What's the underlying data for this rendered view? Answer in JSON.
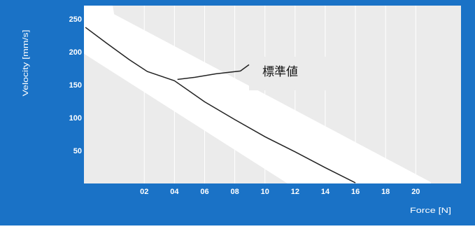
{
  "chart_data": {
    "type": "line",
    "title": "",
    "xlabel": "Force [N]",
    "ylabel": "Velocity [mm/s]",
    "xlim": [
      -0.2,
      2.3
    ],
    "ylim": [
      0,
      270
    ],
    "x_ticks": [
      {
        "value": 0.2,
        "label": "02"
      },
      {
        "value": 0.4,
        "label": "04"
      },
      {
        "value": 0.6,
        "label": "06"
      },
      {
        "value": 0.8,
        "label": "08"
      },
      {
        "value": 1.0,
        "label": "10"
      },
      {
        "value": 1.2,
        "label": "12"
      },
      {
        "value": 1.4,
        "label": "14"
      },
      {
        "value": 1.6,
        "label": "16"
      },
      {
        "value": 1.8,
        "label": "18"
      },
      {
        "value": 2.0,
        "label": "20"
      }
    ],
    "y_ticks": [
      {
        "value": 50,
        "label": "50"
      },
      {
        "value": 100,
        "label": "100"
      },
      {
        "value": 150,
        "label": "150"
      },
      {
        "value": 200,
        "label": "200"
      },
      {
        "value": 250,
        "label": "250"
      }
    ],
    "grid": true,
    "series": [
      {
        "name": "",
        "points": [
          [
            -0.19,
            237
          ],
          [
            -0.05,
            213
          ],
          [
            0.1,
            188
          ],
          [
            0.22,
            170
          ],
          [
            0.4,
            156
          ],
          [
            0.6,
            124
          ],
          [
            0.8,
            97
          ],
          [
            1.0,
            71
          ],
          [
            1.2,
            48
          ],
          [
            1.4,
            24
          ],
          [
            1.6,
            1
          ]
        ]
      }
    ],
    "band": {
      "upper": [
        [
          0.0,
          257
        ],
        [
          2.1,
          2
        ]
      ],
      "lower": [
        [
          -0.19,
          197
        ],
        [
          1.15,
          0
        ]
      ]
    },
    "annotation": {
      "text": "標準値",
      "points_to": [
        0.42,
        158
      ]
    },
    "colors": {
      "frame": "#1a72c6",
      "plot_area": "#ebebeb",
      "band": "#ffffff",
      "line": "#222222",
      "gridline": "#ffffff"
    }
  }
}
